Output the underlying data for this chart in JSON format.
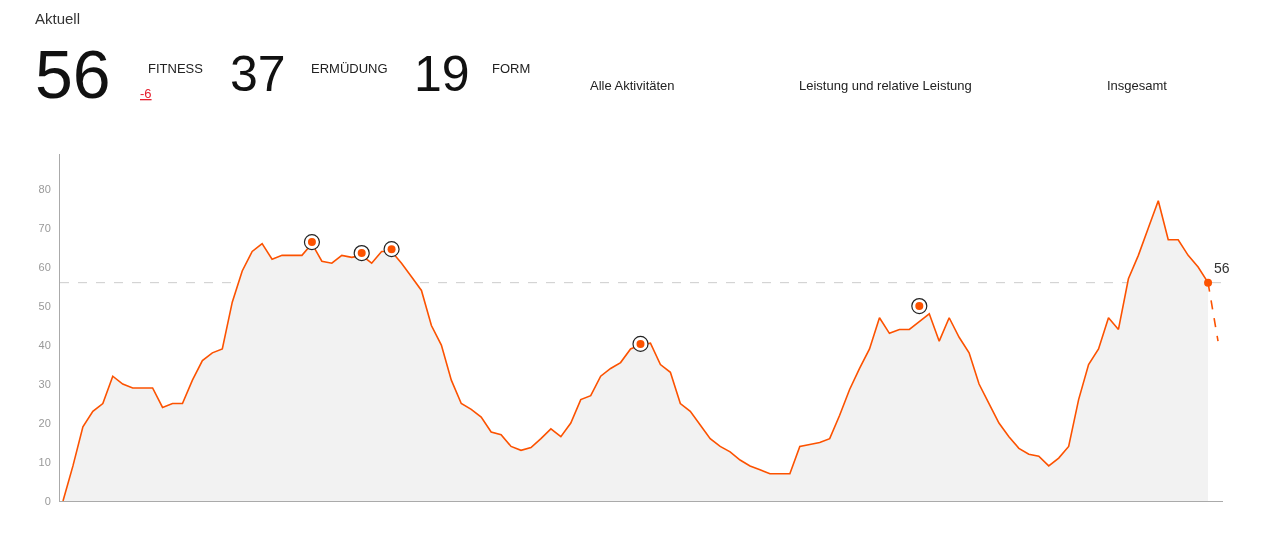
{
  "chart_data": {
    "type": "area",
    "title": "Aktuell",
    "annotations": [
      "56",
      "FITNESS",
      "-6",
      "37",
      "ERMÜDUNG",
      "19",
      "FORM",
      "Alle Aktivitäten",
      "Leistung und relative Leistung",
      "Insgesamt"
    ],
    "categories": [
      null,
      null,
      null,
      null,
      null,
      null,
      null,
      null,
      null,
      null,
      null,
      null,
      null,
      null,
      null,
      null,
      null,
      null,
      null,
      null,
      null,
      null,
      null,
      null,
      null,
      null,
      null,
      null,
      null,
      null,
      null,
      null,
      null,
      null,
      null,
      null,
      null,
      null,
      null,
      null,
      null,
      null,
      null,
      null,
      null,
      null,
      null,
      null,
      null,
      null,
      null,
      null,
      null,
      null,
      null,
      null,
      null,
      null,
      null,
      null,
      null,
      null,
      null,
      null,
      null,
      null,
      null,
      null,
      null,
      null,
      null,
      null,
      null,
      null,
      null,
      null,
      null,
      null,
      null,
      null,
      null,
      null,
      null,
      null,
      null,
      null,
      null,
      null,
      null,
      null,
      null,
      null,
      null,
      null,
      null,
      null,
      null,
      null,
      null,
      null,
      null,
      null,
      null,
      null,
      null,
      null,
      null,
      null,
      null,
      null,
      null,
      null,
      null,
      null,
      null,
      null,
      null
    ],
    "series": [
      {
        "color": "#fc5200",
        "values": [
          0,
          9,
          19,
          23,
          25,
          32,
          30,
          29,
          29,
          29,
          24,
          25,
          25,
          31,
          36,
          38,
          39,
          51,
          59,
          64,
          66,
          62,
          63,
          63,
          63,
          66,
          61.5,
          61,
          63,
          62.5,
          63,
          61,
          64,
          64,
          61,
          57.5,
          54,
          45,
          40,
          31,
          25,
          23.5,
          21.5,
          17.7,
          17,
          14,
          13,
          13.7,
          16,
          18.5,
          16.5,
          20,
          26,
          27,
          32,
          34,
          35.5,
          39,
          40,
          40.5,
          35,
          33,
          25,
          23,
          19.5,
          16,
          14,
          12.6,
          10.5,
          9,
          8,
          7,
          7,
          7,
          14,
          14.5,
          15,
          16,
          22,
          28.6,
          34,
          39,
          47,
          43,
          44,
          44,
          46,
          48,
          41,
          47,
          42,
          38,
          30,
          25,
          20,
          16.5,
          13.5,
          12,
          11.5,
          9,
          11,
          14,
          26,
          35,
          39,
          47,
          44,
          57,
          63,
          70,
          77,
          67,
          67,
          63,
          60,
          56,
          null
        ]
      },
      {
        "type": "line",
        "color": "#fc5200",
        "line_style": "dashed",
        "values": [
          null,
          null,
          null,
          null,
          null,
          null,
          null,
          null,
          null,
          null,
          null,
          null,
          null,
          null,
          null,
          null,
          null,
          null,
          null,
          null,
          null,
          null,
          null,
          null,
          null,
          null,
          null,
          null,
          null,
          null,
          null,
          null,
          null,
          null,
          null,
          null,
          null,
          null,
          null,
          null,
          null,
          null,
          null,
          null,
          null,
          null,
          null,
          null,
          null,
          null,
          null,
          null,
          null,
          null,
          null,
          null,
          null,
          null,
          null,
          null,
          null,
          null,
          null,
          null,
          null,
          null,
          null,
          null,
          null,
          null,
          null,
          null,
          null,
          null,
          null,
          null,
          null,
          null,
          null,
          null,
          null,
          null,
          null,
          null,
          null,
          null,
          null,
          null,
          null,
          null,
          null,
          null,
          null,
          null,
          null,
          null,
          null,
          null,
          null,
          null,
          null,
          null,
          null,
          null,
          null,
          null,
          null,
          null,
          null,
          null,
          null,
          null,
          null,
          null,
          null,
          56,
          41
        ]
      },
      {
        "type": "scatter",
        "color": "#fc5200",
        "marker": "circle",
        "values": [
          null,
          null,
          null,
          null,
          null,
          null,
          null,
          null,
          null,
          null,
          null,
          null,
          null,
          null,
          null,
          null,
          null,
          null,
          null,
          null,
          null,
          null,
          null,
          null,
          null,
          66.4,
          null,
          null,
          null,
          null,
          63.6,
          null,
          null,
          64.6,
          null,
          null,
          null,
          null,
          null,
          null,
          null,
          null,
          null,
          null,
          null,
          null,
          null,
          null,
          null,
          null,
          null,
          null,
          null,
          null,
          null,
          null,
          null,
          null,
          40.3,
          null,
          null,
          null,
          null,
          null,
          null,
          null,
          null,
          null,
          null,
          null,
          null,
          null,
          null,
          null,
          null,
          null,
          null,
          null,
          null,
          null,
          null,
          null,
          null,
          null,
          null,
          null,
          50,
          null,
          null,
          null,
          null,
          null,
          null,
          null,
          null,
          null,
          null,
          null,
          null,
          null,
          null,
          null,
          null,
          null,
          null,
          null,
          null,
          null,
          null,
          null,
          null,
          null,
          null,
          null,
          null,
          null,
          null
        ]
      },
      {
        "type": "scatter",
        "color": "#fc5200",
        "values": [
          null,
          null,
          null,
          null,
          null,
          null,
          null,
          null,
          null,
          null,
          null,
          null,
          null,
          null,
          null,
          null,
          null,
          null,
          null,
          null,
          null,
          null,
          null,
          null,
          null,
          null,
          null,
          null,
          null,
          null,
          null,
          null,
          null,
          null,
          null,
          null,
          null,
          null,
          null,
          null,
          null,
          null,
          null,
          null,
          null,
          null,
          null,
          null,
          null,
          null,
          null,
          null,
          null,
          null,
          null,
          null,
          null,
          null,
          null,
          null,
          null,
          null,
          null,
          null,
          null,
          null,
          null,
          null,
          null,
          null,
          null,
          null,
          null,
          null,
          null,
          null,
          null,
          null,
          null,
          null,
          null,
          null,
          null,
          null,
          null,
          null,
          null,
          null,
          null,
          null,
          null,
          null,
          null,
          null,
          null,
          null,
          null,
          null,
          null,
          null,
          null,
          null,
          null,
          null,
          null,
          null,
          null,
          null,
          null,
          null,
          null,
          null,
          null,
          null,
          null,
          56,
          null
        ],
        "value_labels": [
          null,
          null,
          null,
          null,
          null,
          null,
          null,
          null,
          null,
          null,
          null,
          null,
          null,
          null,
          null,
          null,
          null,
          null,
          null,
          null,
          null,
          null,
          null,
          null,
          null,
          null,
          null,
          null,
          null,
          null,
          null,
          null,
          null,
          null,
          null,
          null,
          null,
          null,
          null,
          null,
          null,
          null,
          null,
          null,
          null,
          null,
          null,
          null,
          null,
          null,
          null,
          null,
          null,
          null,
          null,
          null,
          null,
          null,
          null,
          null,
          null,
          null,
          null,
          null,
          null,
          null,
          null,
          null,
          null,
          null,
          null,
          null,
          null,
          null,
          null,
          null,
          null,
          null,
          null,
          null,
          null,
          null,
          null,
          null,
          null,
          null,
          null,
          null,
          null,
          null,
          null,
          null,
          null,
          null,
          null,
          null,
          null,
          null,
          null,
          null,
          null,
          null,
          null,
          null,
          null,
          null,
          null,
          null,
          null,
          null,
          null,
          null,
          null,
          null,
          null,
          "56",
          null
        ]
      }
    ],
    "ref_lines": [
      {
        "axis": "y",
        "value": 56,
        "color": "#cccccc",
        "line_style": "dashed"
      }
    ],
    "ylim": [
      0,
      89
    ],
    "yticks": [
      0,
      10,
      20,
      30,
      40,
      50,
      60,
      70,
      80
    ],
    "tick_labels": "y"
  }
}
